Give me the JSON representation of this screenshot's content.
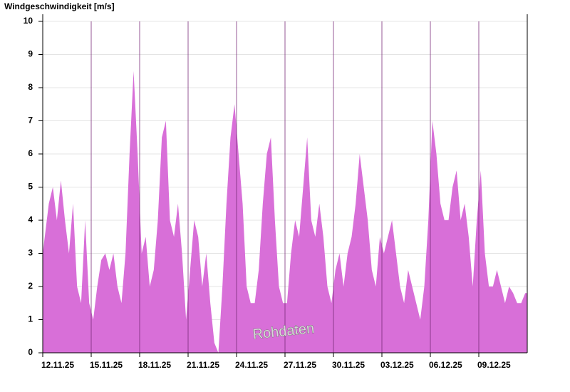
{
  "chart_data": {
    "type": "area",
    "title": "Windgeschwindigkeit [m/s]",
    "annotation": "Rohdaten",
    "categories": [
      "12.11.25",
      null,
      null,
      null,
      null,
      null,
      null,
      null,
      null,
      null,
      null,
      null,
      "15.11.25",
      null,
      null,
      null,
      null,
      null,
      null,
      null,
      null,
      null,
      null,
      null,
      "18.11.25",
      null,
      null,
      null,
      null,
      null,
      null,
      null,
      null,
      null,
      null,
      null,
      "21.11.25",
      null,
      null,
      null,
      null,
      null,
      null,
      null,
      null,
      null,
      null,
      null,
      "24.11.25",
      null,
      null,
      null,
      null,
      null,
      null,
      null,
      null,
      null,
      null,
      null,
      "27.11.25",
      null,
      null,
      null,
      null,
      null,
      null,
      null,
      null,
      null,
      null,
      null,
      "30.11.25",
      null,
      null,
      null,
      null,
      null,
      null,
      null,
      null,
      null,
      null,
      null,
      "03.12.25",
      null,
      null,
      null,
      null,
      null,
      null,
      null,
      null,
      null,
      null,
      null,
      "06.12.25",
      null,
      null,
      null,
      null,
      null,
      null,
      null,
      null,
      null,
      null,
      null,
      "09.12.25",
      null,
      null,
      null,
      null,
      null,
      null,
      null,
      null,
      null,
      null,
      null
    ],
    "series": [
      {
        "name": "Windgeschwindigkeit",
        "color": "#d86fd8",
        "values": [
          3,
          4.5,
          5,
          4,
          5.2,
          4,
          3,
          4.5,
          2,
          1.5,
          4,
          1.5,
          1,
          2,
          2.8,
          3,
          2.5,
          3,
          2,
          1.5,
          3,
          6,
          8.5,
          6,
          3,
          3.5,
          2,
          2.5,
          4,
          6.5,
          7,
          4,
          3.5,
          4.5,
          3,
          1,
          2.5,
          4,
          3.5,
          2,
          3,
          1.5,
          0.3,
          0,
          2,
          4.5,
          6.5,
          7.5,
          6,
          4.5,
          2,
          1.5,
          1.5,
          2.5,
          4.5,
          6,
          6.5,
          4,
          2,
          1.5,
          1.5,
          3,
          4,
          3.5,
          5,
          6.5,
          4,
          3.5,
          4.5,
          3.5,
          2,
          1.5,
          2.5,
          3,
          2,
          3,
          3.5,
          4.5,
          6,
          5,
          4,
          2.5,
          2,
          3.5,
          3,
          3.5,
          4,
          3,
          2,
          1.5,
          2.5,
          2,
          1.5,
          1,
          2,
          4,
          7,
          6,
          4.5,
          4,
          4,
          5,
          5.5,
          4,
          4.5,
          3.5,
          2,
          4,
          5.5,
          3,
          2,
          2,
          2.5,
          2,
          1.5,
          2,
          1.8,
          1.5,
          1.5,
          1.8
        ]
      }
    ],
    "ylim": [
      0,
      10
    ],
    "yticks": [
      0,
      1,
      2,
      3,
      4,
      5,
      6,
      7,
      8,
      9,
      10
    ],
    "grid": true
  }
}
